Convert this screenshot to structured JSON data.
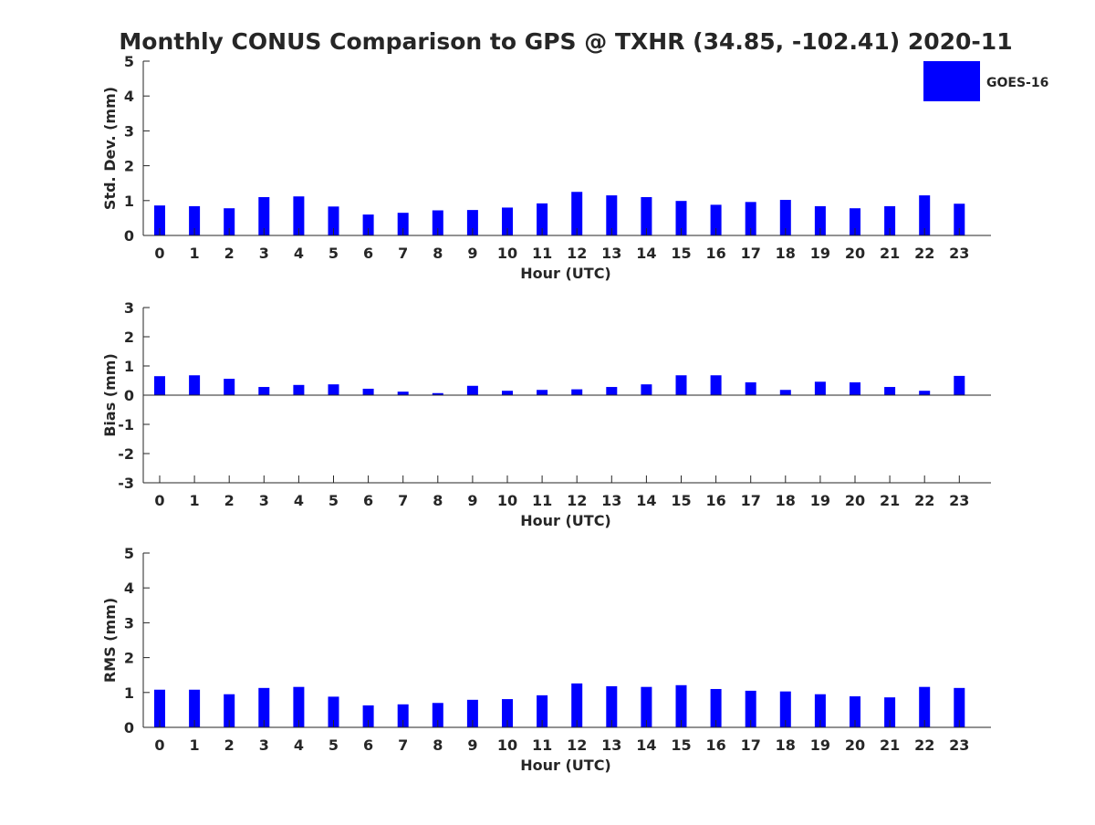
{
  "chart_data": {
    "type": "bar",
    "title": "Monthly CONUS Comparison to GPS @ TXHR (34.85, -102.41) 2020-11",
    "legend": {
      "label": "GOES-16",
      "placement": "top-right",
      "color": "#0000ff"
    },
    "bar_color": "#0000ff",
    "categories": [
      "0",
      "1",
      "2",
      "3",
      "4",
      "5",
      "6",
      "7",
      "8",
      "9",
      "10",
      "11",
      "12",
      "13",
      "14",
      "15",
      "16",
      "17",
      "18",
      "19",
      "20",
      "21",
      "22",
      "23"
    ],
    "panels": [
      {
        "ylabel": "Std. Dev. (mm)",
        "xlabel": "Hour (UTC)",
        "ylim": [
          0,
          5
        ],
        "yticks": [
          "0",
          "1",
          "2",
          "3",
          "4",
          "5"
        ],
        "series": [
          {
            "name": "GOES-16",
            "values": [
              0.86,
              0.84,
              0.78,
              1.1,
              1.12,
              0.83,
              0.6,
              0.65,
              0.72,
              0.73,
              0.8,
              0.92,
              1.25,
              1.15,
              1.1,
              0.99,
              0.88,
              0.96,
              1.02,
              0.84,
              0.78,
              0.84,
              1.15,
              0.91
            ]
          }
        ]
      },
      {
        "ylabel": "Bias (mm)",
        "xlabel": "Hour (UTC)",
        "ylim": [
          -3,
          3
        ],
        "yticks": [
          "-3",
          "-2",
          "-1",
          "0",
          "1",
          "2",
          "3"
        ],
        "series": [
          {
            "name": "GOES-16",
            "values": [
              0.65,
              0.68,
              0.56,
              0.28,
              0.35,
              0.37,
              0.22,
              0.12,
              0.07,
              0.32,
              0.15,
              0.18,
              0.2,
              0.28,
              0.37,
              0.68,
              0.68,
              0.44,
              0.18,
              0.46,
              0.44,
              0.28,
              0.15,
              0.66
            ]
          }
        ]
      },
      {
        "ylabel": "RMS (mm)",
        "xlabel": "Hour (UTC)",
        "ylim": [
          0,
          5
        ],
        "yticks": [
          "0",
          "1",
          "2",
          "3",
          "4",
          "5"
        ],
        "series": [
          {
            "name": "GOES-16",
            "values": [
              1.08,
              1.08,
              0.95,
              1.13,
              1.16,
              0.88,
              0.63,
              0.66,
              0.7,
              0.79,
              0.81,
              0.92,
              1.26,
              1.18,
              1.16,
              1.21,
              1.1,
              1.05,
              1.03,
              0.95,
              0.89,
              0.86,
              1.16,
              1.13
            ]
          }
        ]
      }
    ]
  }
}
